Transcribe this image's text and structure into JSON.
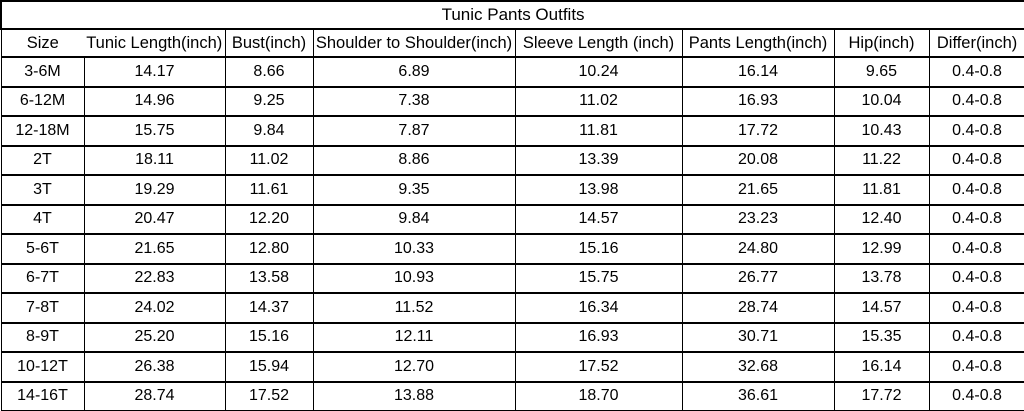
{
  "colors": {
    "background": "#ffffff",
    "text": "#000000",
    "border": "#000000"
  },
  "chart_data": {
    "type": "table",
    "title": "Tunic Pants Outfits",
    "columns": [
      "Size",
      "Tunic Length(inch)",
      "Bust(inch)",
      "Shoulder to Shoulder(inch)",
      "Sleeve Length (inch)",
      "Pants Length(inch)",
      "Hip(inch)",
      "Differ(inch)"
    ],
    "rows": [
      [
        "3-6M",
        "14.17",
        "8.66",
        "6.89",
        "10.24",
        "16.14",
        "9.65",
        "0.4-0.8"
      ],
      [
        "6-12M",
        "14.96",
        "9.25",
        "7.38",
        "11.02",
        "16.93",
        "10.04",
        "0.4-0.8"
      ],
      [
        "12-18M",
        "15.75",
        "9.84",
        "7.87",
        "11.81",
        "17.72",
        "10.43",
        "0.4-0.8"
      ],
      [
        "2T",
        "18.11",
        "11.02",
        "8.86",
        "13.39",
        "20.08",
        "11.22",
        "0.4-0.8"
      ],
      [
        "3T",
        "19.29",
        "11.61",
        "9.35",
        "13.98",
        "21.65",
        "11.81",
        "0.4-0.8"
      ],
      [
        "4T",
        "20.47",
        "12.20",
        "9.84",
        "14.57",
        "23.23",
        "12.40",
        "0.4-0.8"
      ],
      [
        "5-6T",
        "21.65",
        "12.80",
        "10.33",
        "15.16",
        "24.80",
        "12.99",
        "0.4-0.8"
      ],
      [
        "6-7T",
        "22.83",
        "13.58",
        "10.93",
        "15.75",
        "26.77",
        "13.78",
        "0.4-0.8"
      ],
      [
        "7-8T",
        "24.02",
        "14.37",
        "11.52",
        "16.34",
        "28.74",
        "14.57",
        "0.4-0.8"
      ],
      [
        "8-9T",
        "25.20",
        "15.16",
        "12.11",
        "16.93",
        "30.71",
        "15.35",
        "0.4-0.8"
      ],
      [
        "10-12T",
        "26.38",
        "15.94",
        "12.70",
        "17.52",
        "32.68",
        "16.14",
        "0.4-0.8"
      ],
      [
        "14-16T",
        "28.74",
        "17.52",
        "13.88",
        "18.70",
        "36.61",
        "17.72",
        "0.4-0.8"
      ]
    ]
  }
}
